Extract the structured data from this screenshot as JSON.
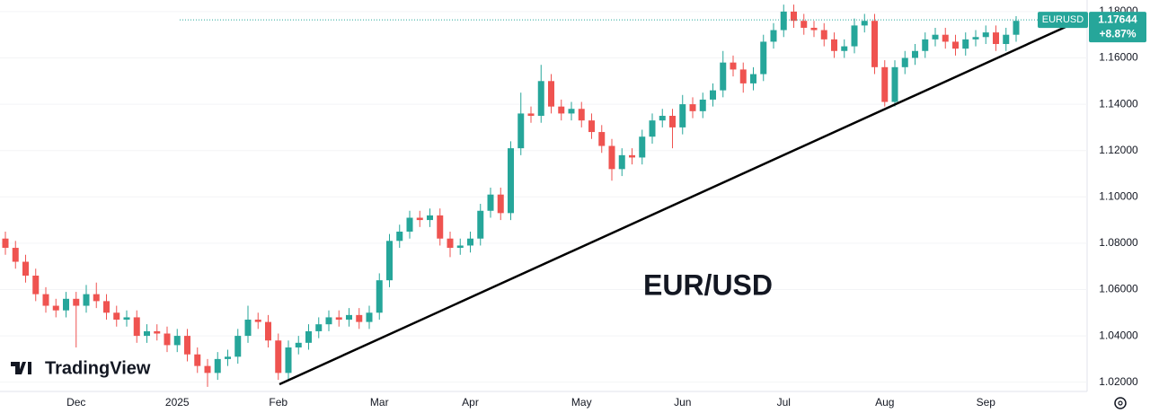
{
  "chart_data": {
    "type": "candlestick",
    "symbol": "EURUSD",
    "last_price": 1.17644,
    "change": {
      "value": 8.87,
      "label": "+8.87%"
    },
    "annotation": "EUR/USD",
    "watermark": "TradingView",
    "up_color": "#26a69a",
    "down_color": "#ef5350",
    "ylim": [
      1.016,
      1.185
    ],
    "yticks": [
      {
        "value": 1.02,
        "label": "1.02000"
      },
      {
        "value": 1.04,
        "label": "1.04000"
      },
      {
        "value": 1.06,
        "label": "1.06000"
      },
      {
        "value": 1.08,
        "label": "1.08000"
      },
      {
        "value": 1.1,
        "label": "1.10000"
      },
      {
        "value": 1.12,
        "label": "1.12000"
      },
      {
        "value": 1.14,
        "label": "1.14000"
      },
      {
        "value": 1.16,
        "label": "1.16000"
      },
      {
        "value": 1.18,
        "label": "1.18000"
      }
    ],
    "categories": [
      null,
      null,
      null,
      null,
      null,
      null,
      null,
      "Dec",
      null,
      null,
      null,
      null,
      null,
      null,
      null,
      null,
      null,
      "2025",
      null,
      null,
      null,
      null,
      null,
      null,
      null,
      null,
      null,
      "Feb",
      null,
      null,
      null,
      null,
      null,
      null,
      null,
      null,
      null,
      "Mar",
      null,
      null,
      null,
      null,
      null,
      null,
      null,
      null,
      "Apr",
      null,
      null,
      null,
      null,
      null,
      null,
      null,
      null,
      null,
      null,
      "May",
      null,
      null,
      null,
      null,
      null,
      null,
      null,
      null,
      null,
      "Jun",
      null,
      null,
      null,
      null,
      null,
      null,
      null,
      null,
      null,
      "Jul",
      null,
      null,
      null,
      null,
      null,
      null,
      null,
      null,
      null,
      "Aug",
      null,
      null,
      null,
      null,
      null,
      null,
      null,
      null,
      null,
      "Sep",
      null,
      null,
      null
    ],
    "open": [
      1.082,
      1.078,
      1.072,
      1.066,
      1.058,
      1.053,
      1.051,
      1.056,
      1.053,
      1.058,
      1.055,
      1.05,
      1.047,
      1.048,
      1.04,
      1.042,
      1.041,
      1.036,
      1.04,
      1.032,
      1.027,
      1.024,
      1.03,
      1.031,
      1.04,
      1.047,
      1.046,
      1.038,
      1.024,
      1.035,
      1.037,
      1.042,
      1.045,
      1.048,
      1.047,
      1.049,
      1.046,
      1.05,
      1.064,
      1.081,
      1.085,
      1.091,
      1.09,
      1.092,
      1.082,
      1.078,
      1.079,
      1.082,
      1.094,
      1.101,
      1.093,
      1.121,
      1.136,
      1.135,
      1.15,
      1.139,
      1.136,
      1.138,
      1.133,
      1.128,
      1.122,
      1.112,
      1.118,
      1.117,
      1.126,
      1.133,
      1.135,
      1.13,
      1.14,
      1.137,
      1.142,
      1.146,
      1.158,
      1.155,
      1.149,
      1.153,
      1.167,
      1.172,
      1.18,
      1.176,
      1.173,
      1.172,
      1.168,
      1.163,
      1.165,
      1.174,
      1.176,
      1.156,
      1.141,
      1.156,
      1.16,
      1.163,
      1.168,
      1.17,
      1.167,
      1.164,
      1.168,
      1.169,
      1.171,
      1.166,
      1.17
    ],
    "high": [
      1.085,
      1.081,
      1.075,
      1.069,
      1.061,
      1.056,
      1.059,
      1.059,
      1.062,
      1.063,
      1.058,
      1.053,
      1.051,
      1.051,
      1.045,
      1.045,
      1.044,
      1.043,
      1.043,
      1.035,
      1.03,
      1.033,
      1.034,
      1.043,
      1.053,
      1.05,
      1.049,
      1.041,
      1.038,
      1.04,
      1.045,
      1.048,
      1.051,
      1.051,
      1.052,
      1.052,
      1.053,
      1.067,
      1.084,
      1.088,
      1.094,
      1.094,
      1.095,
      1.095,
      1.085,
      1.082,
      1.085,
      1.097,
      1.104,
      1.104,
      1.124,
      1.145,
      1.139,
      1.157,
      1.153,
      1.142,
      1.141,
      1.141,
      1.136,
      1.131,
      1.125,
      1.121,
      1.121,
      1.129,
      1.136,
      1.138,
      1.138,
      1.144,
      1.143,
      1.145,
      1.149,
      1.163,
      1.161,
      1.158,
      1.156,
      1.17,
      1.175,
      1.183,
      1.183,
      1.179,
      1.176,
      1.175,
      1.171,
      1.168,
      1.177,
      1.179,
      1.179,
      1.159,
      1.159,
      1.163,
      1.166,
      1.171,
      1.173,
      1.173,
      1.17,
      1.171,
      1.172,
      1.174,
      1.174,
      1.173,
      1.178
    ],
    "low": [
      1.075,
      1.069,
      1.063,
      1.055,
      1.05,
      1.048,
      1.048,
      1.035,
      1.05,
      1.052,
      1.047,
      1.044,
      1.044,
      1.037,
      1.037,
      1.038,
      1.033,
      1.033,
      1.029,
      1.024,
      1.018,
      1.021,
      1.027,
      1.028,
      1.037,
      1.043,
      1.035,
      1.021,
      1.021,
      1.032,
      1.034,
      1.039,
      1.042,
      1.044,
      1.044,
      1.043,
      1.043,
      1.047,
      1.061,
      1.078,
      1.082,
      1.087,
      1.087,
      1.079,
      1.074,
      1.075,
      1.076,
      1.079,
      1.091,
      1.09,
      1.09,
      1.118,
      1.132,
      1.132,
      1.136,
      1.133,
      1.133,
      1.13,
      1.125,
      1.119,
      1.107,
      1.109,
      1.114,
      1.114,
      1.123,
      1.13,
      1.121,
      1.127,
      1.134,
      1.134,
      1.139,
      1.143,
      1.152,
      1.145,
      1.146,
      1.15,
      1.164,
      1.169,
      1.173,
      1.17,
      1.169,
      1.165,
      1.16,
      1.16,
      1.162,
      1.171,
      1.153,
      1.139,
      1.139,
      1.153,
      1.157,
      1.16,
      1.165,
      1.164,
      1.161,
      1.161,
      1.165,
      1.166,
      1.163,
      1.163,
      1.167
    ],
    "close": [
      1.078,
      1.072,
      1.066,
      1.058,
      1.053,
      1.051,
      1.056,
      1.053,
      1.058,
      1.055,
      1.05,
      1.047,
      1.048,
      1.04,
      1.042,
      1.041,
      1.036,
      1.04,
      1.032,
      1.027,
      1.024,
      1.03,
      1.031,
      1.04,
      1.047,
      1.046,
      1.038,
      1.024,
      1.035,
      1.037,
      1.042,
      1.045,
      1.048,
      1.047,
      1.049,
      1.046,
      1.05,
      1.064,
      1.081,
      1.085,
      1.091,
      1.09,
      1.092,
      1.082,
      1.078,
      1.079,
      1.082,
      1.094,
      1.101,
      1.093,
      1.121,
      1.136,
      1.135,
      1.15,
      1.139,
      1.136,
      1.138,
      1.133,
      1.128,
      1.122,
      1.112,
      1.118,
      1.117,
      1.126,
      1.133,
      1.135,
      1.13,
      1.14,
      1.137,
      1.142,
      1.146,
      1.158,
      1.155,
      1.149,
      1.153,
      1.167,
      1.172,
      1.18,
      1.176,
      1.173,
      1.172,
      1.168,
      1.163,
      1.165,
      1.174,
      1.176,
      1.156,
      1.141,
      1.156,
      1.16,
      1.163,
      1.168,
      1.17,
      1.167,
      1.164,
      1.168,
      1.169,
      1.171,
      1.166,
      1.17,
      1.176
    ]
  }
}
